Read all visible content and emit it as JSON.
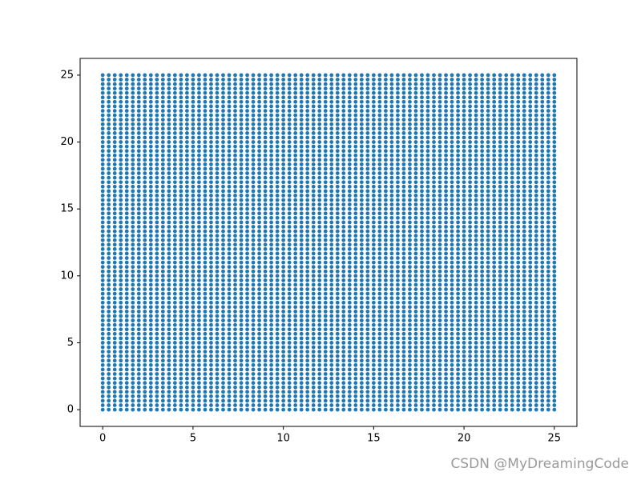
{
  "chart_data": {
    "type": "scatter-grid",
    "color": "#1f77b4",
    "x": [
      0,
      0.333,
      0.667,
      1,
      1.333,
      1.667,
      2,
      2.333,
      2.667,
      3,
      3.333,
      3.667,
      4,
      4.333,
      4.667,
      5,
      5.333,
      5.667,
      6,
      6.333,
      6.667,
      7,
      7.333,
      7.667,
      8,
      8.333,
      8.667,
      9,
      9.333,
      9.667,
      10,
      10.333,
      10.667,
      11,
      11.333,
      11.667,
      12,
      12.333,
      12.667,
      13,
      13.333,
      13.667,
      14,
      14.333,
      14.667,
      15,
      15.333,
      15.667,
      16,
      16.333,
      16.667,
      17,
      17.333,
      17.667,
      18,
      18.333,
      18.667,
      19,
      19.333,
      19.667,
      20,
      20.333,
      20.667,
      21,
      21.333,
      21.667,
      22,
      22.333,
      22.667,
      23,
      23.333,
      23.667,
      24,
      24.333,
      24.667,
      25
    ],
    "y": [
      0,
      0.333,
      0.667,
      1,
      1.333,
      1.667,
      2,
      2.333,
      2.667,
      3,
      3.333,
      3.667,
      4,
      4.333,
      4.667,
      5,
      5.333,
      5.667,
      6,
      6.333,
      6.667,
      7,
      7.333,
      7.667,
      8,
      8.333,
      8.667,
      9,
      9.333,
      9.667,
      10,
      10.333,
      10.667,
      11,
      11.333,
      11.667,
      12,
      12.333,
      12.667,
      13,
      13.333,
      13.667,
      14,
      14.333,
      14.667,
      15,
      15.333,
      15.667,
      16,
      16.333,
      16.667,
      17,
      17.333,
      17.667,
      18,
      18.333,
      18.667,
      19,
      19.333,
      19.667,
      20,
      20.333,
      20.667,
      21,
      21.333,
      21.667,
      22,
      22.333,
      22.667,
      23,
      23.333,
      23.667,
      24,
      24.333,
      24.667,
      25
    ],
    "xlim": [
      -1.25,
      26.25
    ],
    "ylim": [
      -1.25,
      26.25
    ],
    "xticks": [
      0,
      5,
      10,
      15,
      20,
      25
    ],
    "yticks": [
      0,
      5,
      10,
      15,
      20,
      25
    ]
  },
  "watermark": "CSDN @MyDreamingCode"
}
